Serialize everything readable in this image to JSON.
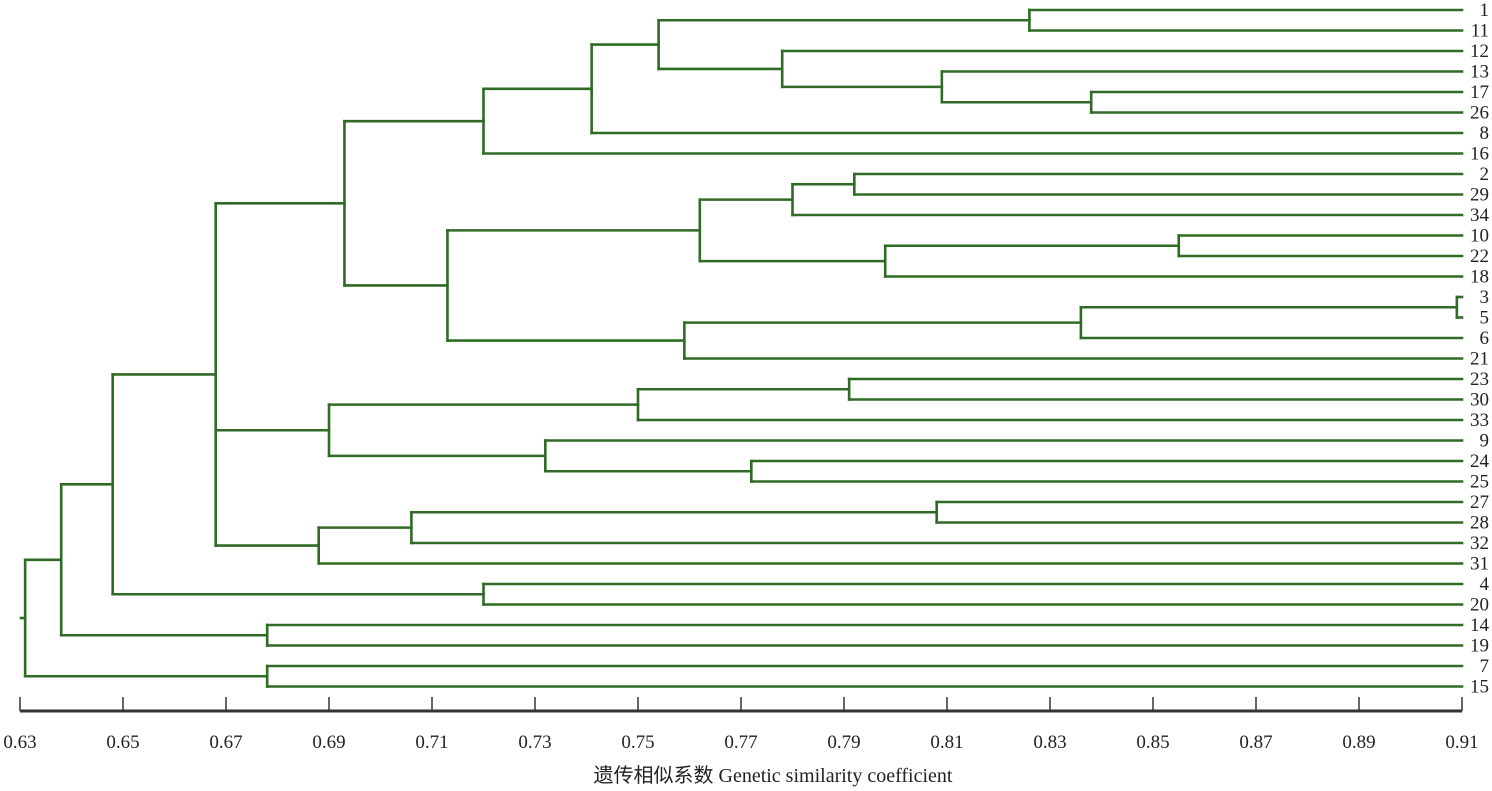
{
  "chart_data": {
    "type": "dendrogram",
    "orientation": "horizontal, leaves on right",
    "xlabel": "遗传相似系数 Genetic similarity coefficient",
    "xlim": [
      0.63,
      0.91
    ],
    "xticks": [
      "0.63",
      "0.65",
      "0.67",
      "0.69",
      "0.71",
      "0.73",
      "0.75",
      "0.77",
      "0.79",
      "0.81",
      "0.83",
      "0.85",
      "0.87",
      "0.89",
      "0.91"
    ],
    "grid": false,
    "line_color": "#2f6b24",
    "leaf_order": [
      "1",
      "11",
      "12",
      "13",
      "17",
      "26",
      "8",
      "16",
      "2",
      "29",
      "34",
      "10",
      "22",
      "18",
      "3",
      "5",
      "6",
      "21",
      "23",
      "30",
      "33",
      "9",
      "24",
      "25",
      "27",
      "28",
      "32",
      "31",
      "4",
      "20",
      "14",
      "19",
      "7",
      "15"
    ],
    "tree": {
      "similarity": 0.631,
      "children": [
        {
          "similarity": 0.638,
          "children": [
            {
              "similarity": 0.648,
              "children": [
                {
                  "similarity": 0.668,
                  "children": [
                    {
                      "similarity": 0.693,
                      "children": [
                        {
                          "similarity": 0.72,
                          "children": [
                            {
                              "similarity": 0.741,
                              "children": [
                                {
                                  "similarity": 0.754,
                                  "children": [
                                    {
                                      "similarity": 0.826,
                                      "children": [
                                        {
                                          "label": "1"
                                        },
                                        {
                                          "label": "11"
                                        }
                                      ]
                                    },
                                    {
                                      "similarity": 0.778,
                                      "children": [
                                        {
                                          "label": "12"
                                        },
                                        {
                                          "similarity": 0.809,
                                          "children": [
                                            {
                                              "label": "13"
                                            },
                                            {
                                              "similarity": 0.838,
                                              "children": [
                                                {
                                                  "label": "17"
                                                },
                                                {
                                                  "label": "26"
                                                }
                                              ]
                                            }
                                          ]
                                        }
                                      ]
                                    }
                                  ]
                                },
                                {
                                  "label": "8"
                                }
                              ]
                            },
                            {
                              "label": "16"
                            }
                          ]
                        },
                        {
                          "similarity": 0.713,
                          "children": [
                            {
                              "similarity": 0.762,
                              "children": [
                                {
                                  "similarity": 0.78,
                                  "children": [
                                    {
                                      "similarity": 0.792,
                                      "children": [
                                        {
                                          "label": "2"
                                        },
                                        {
                                          "label": "29"
                                        }
                                      ]
                                    },
                                    {
                                      "label": "34"
                                    }
                                  ]
                                },
                                {
                                  "similarity": 0.798,
                                  "children": [
                                    {
                                      "similarity": 0.855,
                                      "children": [
                                        {
                                          "label": "10"
                                        },
                                        {
                                          "label": "22"
                                        }
                                      ]
                                    },
                                    {
                                      "label": "18"
                                    }
                                  ]
                                }
                              ]
                            },
                            {
                              "similarity": 0.759,
                              "children": [
                                {
                                  "similarity": 0.836,
                                  "children": [
                                    {
                                      "similarity": 0.909,
                                      "children": [
                                        {
                                          "label": "3"
                                        },
                                        {
                                          "label": "5"
                                        }
                                      ]
                                    },
                                    {
                                      "label": "6"
                                    }
                                  ]
                                },
                                {
                                  "label": "21"
                                }
                              ]
                            }
                          ]
                        }
                      ]
                    },
                    {
                      "similarity": 0.69,
                      "children": [
                        {
                          "similarity": 0.75,
                          "children": [
                            {
                              "similarity": 0.791,
                              "children": [
                                {
                                  "label": "23"
                                },
                                {
                                  "label": "30"
                                }
                              ]
                            },
                            {
                              "label": "33"
                            }
                          ]
                        },
                        {
                          "similarity": 0.732,
                          "children": [
                            {
                              "label": "9"
                            },
                            {
                              "similarity": 0.772,
                              "children": [
                                {
                                  "label": "24"
                                },
                                {
                                  "label": "25"
                                }
                              ]
                            }
                          ]
                        }
                      ]
                    },
                    {
                      "similarity": 0.688,
                      "children": [
                        {
                          "similarity": 0.706,
                          "children": [
                            {
                              "similarity": 0.808,
                              "children": [
                                {
                                  "label": "27"
                                },
                                {
                                  "label": "28"
                                }
                              ]
                            },
                            {
                              "label": "32"
                            }
                          ]
                        },
                        {
                          "label": "31"
                        }
                      ]
                    }
                  ]
                },
                {
                  "similarity": 0.72,
                  "children": [
                    {
                      "label": "4"
                    },
                    {
                      "label": "20"
                    }
                  ]
                }
              ]
            },
            {
              "similarity": 0.678,
              "children": [
                {
                  "label": "14"
                },
                {
                  "label": "19"
                }
              ]
            }
          ]
        },
        {
          "similarity": 0.678,
          "children": [
            {
              "label": "7"
            },
            {
              "label": "15"
            }
          ]
        }
      ]
    }
  }
}
